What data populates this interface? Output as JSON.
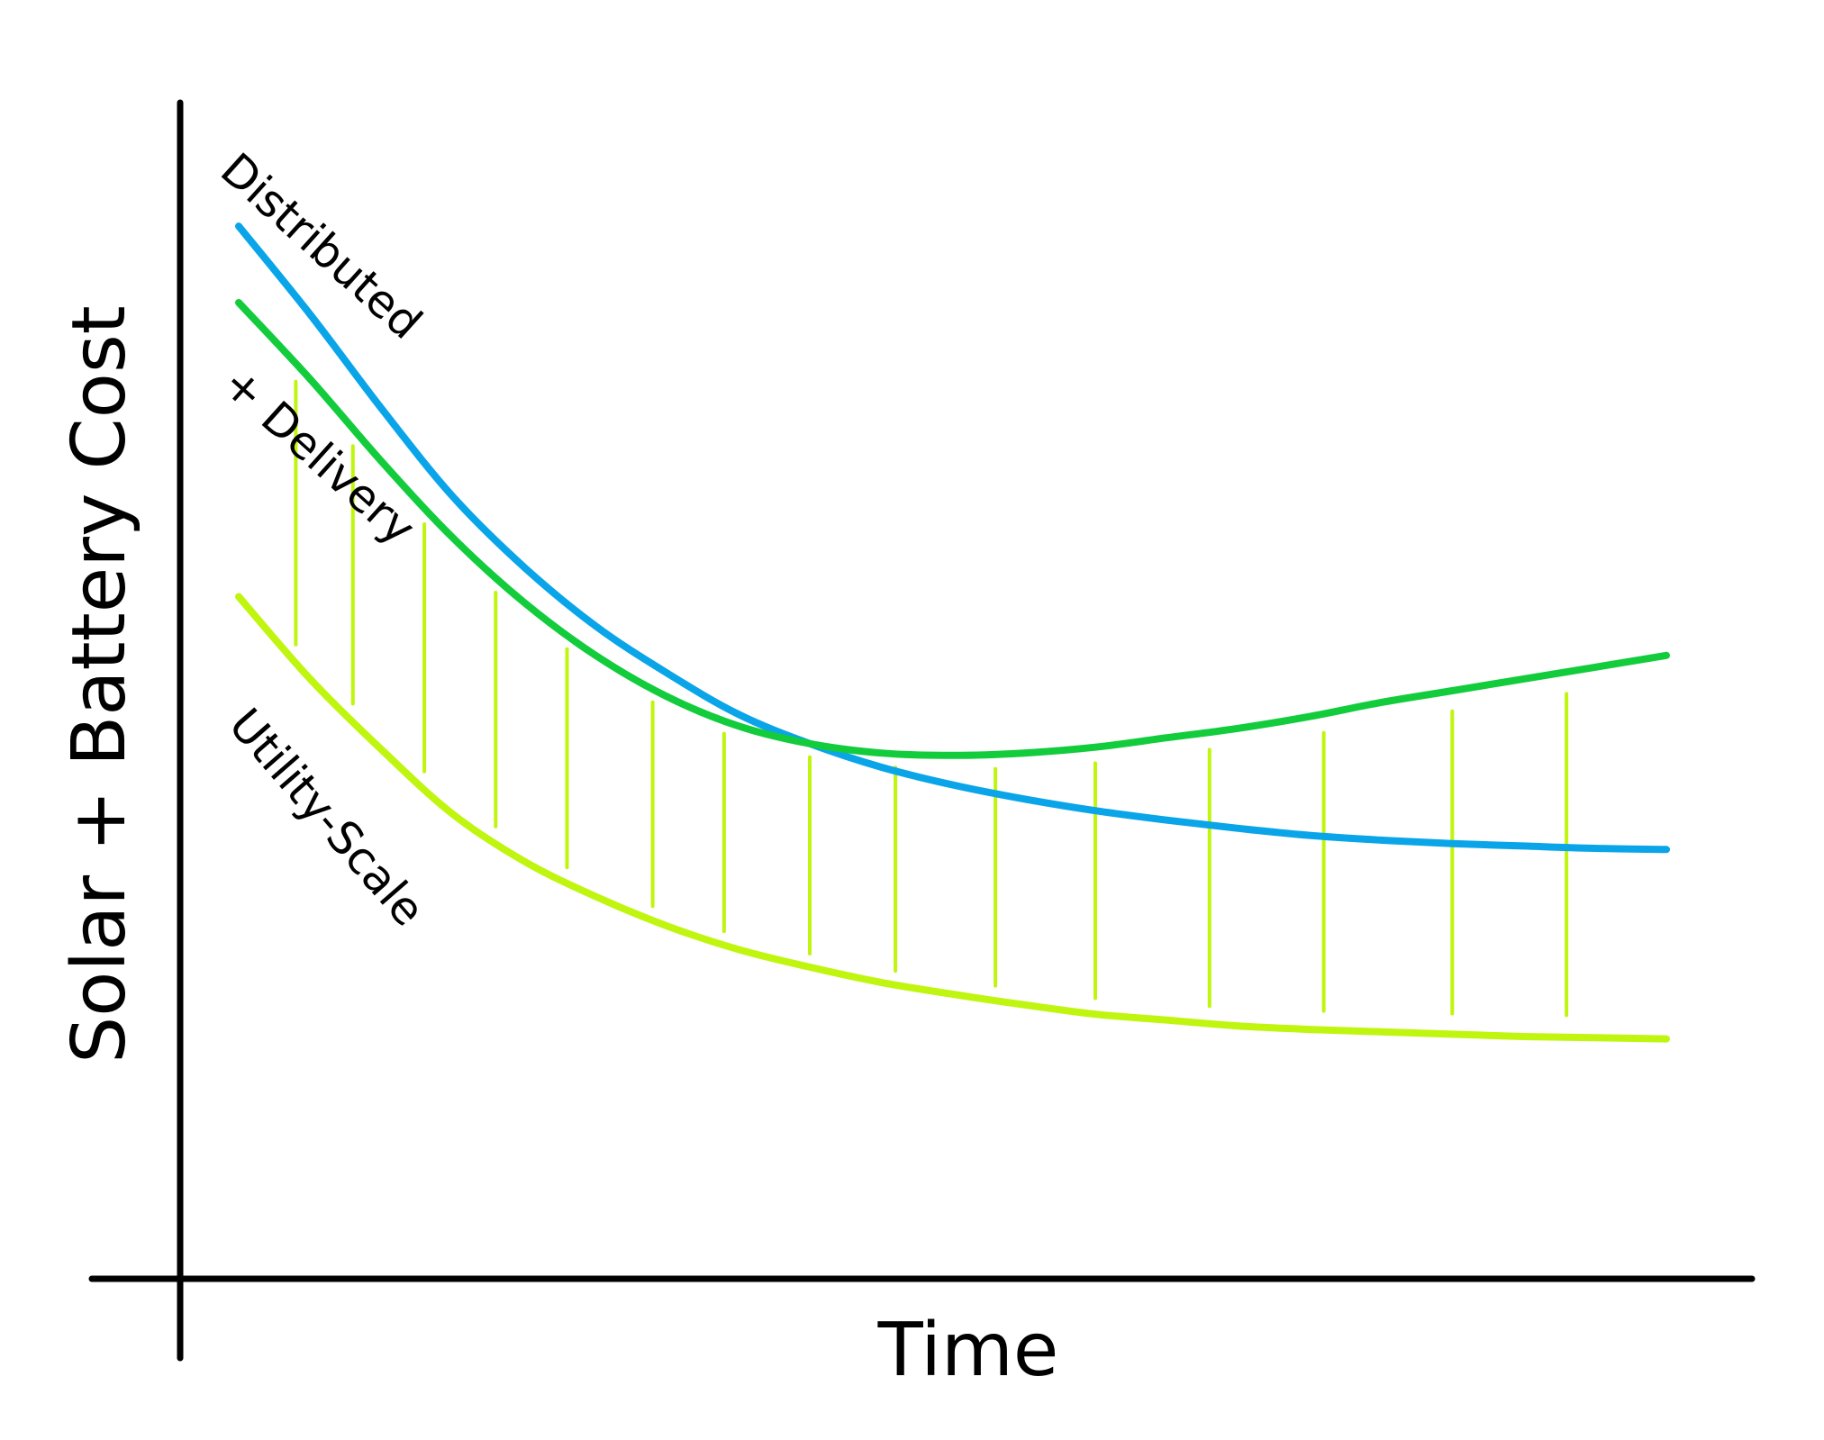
{
  "chart_data": {
    "type": "line",
    "xlabel": "Time",
    "ylabel": "Solar + Battery Cost",
    "xlim": [
      0,
      1
    ],
    "ylim": [
      0,
      1
    ],
    "ticks": "none",
    "grid": false,
    "legend": "none",
    "series": [
      {
        "name": "Distributed",
        "color": "#0aa5e8",
        "x": [
          0.0,
          0.05,
          0.1,
          0.15,
          0.2,
          0.25,
          0.3,
          0.35,
          0.4,
          0.45,
          0.5,
          0.55,
          0.6,
          0.65,
          0.7,
          0.75,
          0.8,
          0.85,
          0.9,
          0.95,
          1.0
        ],
        "y": [
          0.895,
          0.82,
          0.74,
          0.665,
          0.605,
          0.555,
          0.515,
          0.48,
          0.455,
          0.435,
          0.42,
          0.408,
          0.398,
          0.39,
          0.383,
          0.377,
          0.373,
          0.37,
          0.368,
          0.366,
          0.365
        ]
      },
      {
        "name": "+ Delivery",
        "color": "#12cc3c",
        "x": [
          0.0,
          0.05,
          0.1,
          0.15,
          0.2,
          0.25,
          0.3,
          0.35,
          0.4,
          0.45,
          0.5,
          0.55,
          0.6,
          0.65,
          0.7,
          0.75,
          0.8,
          0.85,
          0.9,
          0.95,
          1.0
        ],
        "y": [
          0.83,
          0.765,
          0.695,
          0.63,
          0.575,
          0.53,
          0.495,
          0.47,
          0.455,
          0.447,
          0.445,
          0.447,
          0.452,
          0.46,
          0.468,
          0.478,
          0.49,
          0.5,
          0.51,
          0.52,
          0.53
        ]
      },
      {
        "name": "Utility-Scale",
        "color": "#c0f50f",
        "x": [
          0.0,
          0.05,
          0.1,
          0.15,
          0.2,
          0.25,
          0.3,
          0.35,
          0.4,
          0.45,
          0.5,
          0.55,
          0.6,
          0.65,
          0.7,
          0.75,
          0.8,
          0.85,
          0.9,
          0.95,
          1.0
        ],
        "y": [
          0.58,
          0.51,
          0.45,
          0.395,
          0.355,
          0.325,
          0.3,
          0.28,
          0.265,
          0.252,
          0.242,
          0.233,
          0.225,
          0.22,
          0.215,
          0.212,
          0.21,
          0.208,
          0.206,
          0.205,
          0.204
        ]
      }
    ],
    "annotations": [
      {
        "type": "hatched-band",
        "between": [
          "Utility-Scale",
          "+ Delivery"
        ],
        "color": "#c0f50f"
      }
    ]
  }
}
